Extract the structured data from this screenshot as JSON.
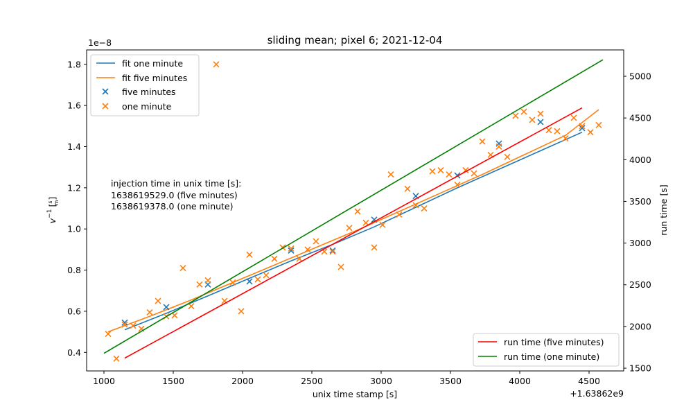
{
  "chart_data": {
    "type": "scatter",
    "title": "sliding mean; pixel 6; 2021-12-04",
    "xlabel": "unix time stamp [s]",
    "x_offset_label": "+1.63862e9",
    "x_offset": 1638620000,
    "ylabel_left_main": "v",
    "ylabel_left_sup": "−1",
    "ylabel_left_unit": "[s/m]",
    "ylabel_left_unit_num": "s",
    "ylabel_left_unit_den": "m",
    "ylabel_right": "run time [s]",
    "y_scale_label": "1e−8",
    "x_ticks": [
      1000,
      1500,
      2000,
      2500,
      3000,
      3500,
      4000,
      4500
    ],
    "x_tick_labels": [
      "1000",
      "1500",
      "2000",
      "2500",
      "3000",
      "3500",
      "4000",
      "4500"
    ],
    "y_left_ticks": [
      0.4,
      0.6,
      0.8,
      1.0,
      1.2,
      1.4,
      1.6,
      1.8
    ],
    "y_left_tick_labels": [
      "0.4",
      "0.6",
      "0.8",
      "1.0",
      "1.2",
      "1.4",
      "1.6",
      "1.8"
    ],
    "y_right_ticks": [
      1500,
      2000,
      2500,
      3000,
      3500,
      4000,
      4500,
      5000
    ],
    "y_right_tick_labels": [
      "1500",
      "2000",
      "2500",
      "3000",
      "3500",
      "4000",
      "4500",
      "5000"
    ],
    "xlim": [
      875,
      4750
    ],
    "ylim_left": [
      0.31,
      1.87
    ],
    "ylim_right": [
      1467,
      5316
    ],
    "annotation_lines": [
      "injection time in unix time [s]:",
      "1638619529.0 (five minutes)",
      "1638619378.0 (one minute)"
    ],
    "legend_left_placement": "top-left",
    "legend_right_placement": "bottom-right",
    "colors": {
      "blue": "#1f77b4",
      "orange": "#ff7f0e",
      "red": "#ff0000",
      "green": "#008000"
    },
    "series": [
      {
        "name": "fit one minute",
        "kind": "line",
        "axis": "left",
        "color": "#1f77b4",
        "x": [
          1150,
          1450,
          1750,
          2050,
          2350,
          2650,
          2950,
          3250,
          3550,
          3850,
          4150,
          4450
        ],
        "y": [
          0.51,
          0.59,
          0.675,
          0.76,
          0.845,
          0.925,
          1.01,
          1.105,
          1.2,
          1.29,
          1.38,
          1.47
        ]
      },
      {
        "name": "fit five minutes",
        "kind": "line",
        "axis": "left",
        "color": "#ff7f0e",
        "x": [
          1030,
          1330,
          1630,
          1930,
          2230,
          2530,
          2830,
          3130,
          3430,
          3730,
          4030,
          4330,
          4570
        ],
        "y": [
          0.5,
          0.575,
          0.655,
          0.74,
          0.825,
          0.91,
          0.995,
          1.085,
          1.175,
          1.265,
          1.36,
          1.455,
          1.58
        ]
      },
      {
        "name": "five minutes",
        "kind": "scatter",
        "axis": "left",
        "color": "#1f77b4",
        "x": [
          1150,
          1450,
          1750,
          2050,
          2350,
          2650,
          2950,
          3250,
          3550,
          3850,
          4150,
          4450
        ],
        "y": [
          0.545,
          0.62,
          0.73,
          0.745,
          0.895,
          0.895,
          1.045,
          1.16,
          1.26,
          1.415,
          1.52,
          1.49
        ]
      },
      {
        "name": "one minute",
        "kind": "scatter",
        "axis": "left",
        "color": "#ff7f0e",
        "x": [
          1030,
          1090,
          1150,
          1210,
          1270,
          1330,
          1390,
          1450,
          1510,
          1570,
          1630,
          1690,
          1750,
          1810,
          1870,
          1930,
          1990,
          2050,
          2110,
          2170,
          2230,
          2290,
          2350,
          2410,
          2470,
          2530,
          2590,
          2650,
          2710,
          2770,
          2830,
          2890,
          2950,
          3010,
          3070,
          3130,
          3190,
          3250,
          3310,
          3370,
          3430,
          3490,
          3550,
          3610,
          3670,
          3730,
          3790,
          3850,
          3910,
          3970,
          4030,
          4090,
          4150,
          4210,
          4270,
          4330,
          4390,
          4450,
          4510,
          4570
        ],
        "y": [
          0.49,
          0.37,
          0.535,
          0.53,
          0.515,
          0.595,
          0.65,
          0.575,
          0.58,
          0.81,
          0.625,
          0.73,
          0.75,
          1.8,
          0.65,
          0.74,
          0.6,
          0.875,
          0.755,
          0.775,
          0.855,
          0.91,
          0.905,
          0.855,
          0.9,
          0.94,
          0.89,
          0.89,
          0.815,
          1.005,
          1.085,
          1.03,
          0.91,
          1.02,
          1.265,
          1.07,
          1.195,
          1.115,
          1.1,
          1.28,
          1.285,
          1.265,
          1.215,
          1.285,
          1.27,
          1.425,
          1.36,
          1.4,
          1.35,
          1.55,
          1.57,
          1.53,
          1.56,
          1.48,
          1.475,
          1.44,
          1.54,
          1.5,
          1.47,
          1.505
        ]
      },
      {
        "name": "run time (five minutes)",
        "kind": "line",
        "axis": "right",
        "color": "#ff0000",
        "x": [
          1150,
          4450
        ],
        "y": [
          1621,
          4621
        ]
      },
      {
        "name": "run time (one minute)",
        "kind": "line",
        "axis": "right",
        "color": "#008000",
        "x": [
          1000,
          4600
        ],
        "y": [
          1678,
          5198
        ]
      }
    ]
  }
}
